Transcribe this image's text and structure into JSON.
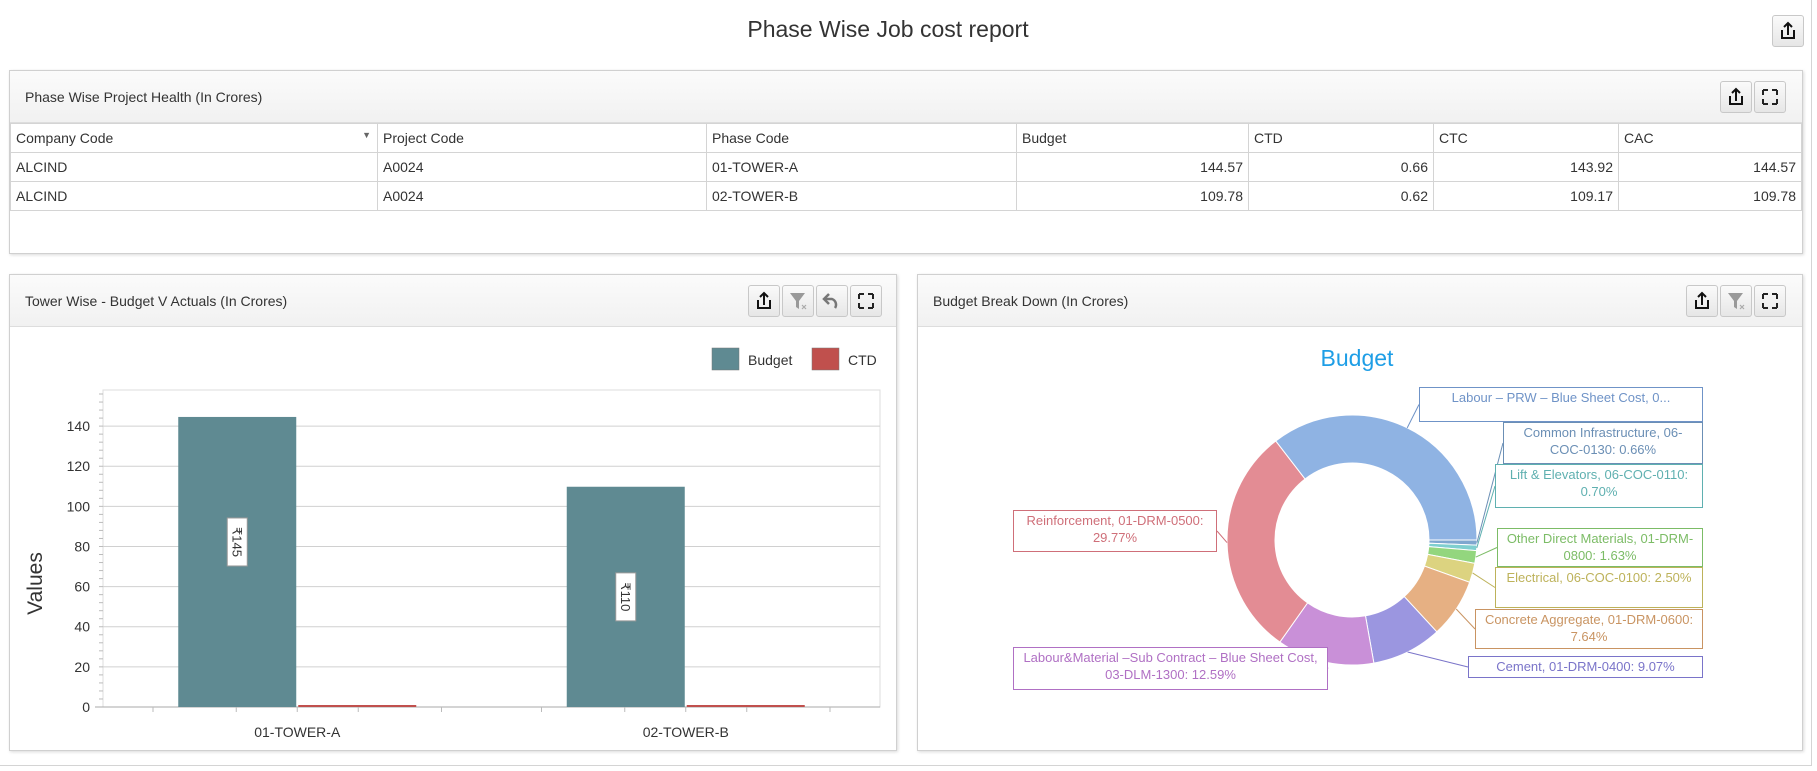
{
  "page": {
    "title": "Phase Wise Job cost report"
  },
  "health_panel": {
    "title": "Phase Wise Project Health (In Crores)",
    "columns": [
      "Company Code",
      "Project Code",
      "Phase Code",
      "Budget",
      "CTD",
      "CTC",
      "CAC"
    ],
    "rows": [
      [
        "ALCIND",
        "A0024",
        "01-TOWER-A",
        "144.57",
        "0.66",
        "143.92",
        "144.57"
      ],
      [
        "ALCIND",
        "A0024",
        "02-TOWER-B",
        "109.78",
        "0.62",
        "109.17",
        "109.78"
      ]
    ]
  },
  "bar_panel": {
    "title": "Tower Wise - Budget V Actuals (In Crores)"
  },
  "pie_panel": {
    "title": "Budget Break Down (In Crores)"
  },
  "chart_data": [
    {
      "type": "bar",
      "title": "",
      "xlabel": "",
      "ylabel": "Values",
      "categories": [
        "01-TOWER-A",
        "02-TOWER-B"
      ],
      "series": [
        {
          "name": "Budget",
          "color": "#5f8a92",
          "values": [
            144.57,
            109.78
          ],
          "labels": [
            "₹145",
            "₹110"
          ]
        },
        {
          "name": "CTD",
          "color": "#c0504d",
          "values": [
            0.66,
            0.62
          ]
        }
      ],
      "yticks": [
        0,
        20,
        40,
        60,
        80,
        100,
        120,
        140
      ],
      "ylim": [
        0,
        158
      ],
      "legend": "top-right",
      "grid": true
    },
    {
      "type": "pie",
      "title": "Budget",
      "slices": [
        {
          "label": "Common Infrastructure, 06-COC-0130: 0.66%",
          "value": 0.66,
          "color": "#7fa7cf",
          "text": "#6b8fb5"
        },
        {
          "label": "Lift & Elevators, 06-COC-0110: 0.70%",
          "value": 0.7,
          "color": "#7fcfcf",
          "text": "#5fb0b0"
        },
        {
          "label": "Other Direct Materials, 01-DRM-0800: 1.63%",
          "value": 1.63,
          "color": "#93d67e",
          "text": "#7cbc66"
        },
        {
          "label": "Electrical, 06-COC-0100: 2.50%",
          "value": 2.5,
          "color": "#dcd380",
          "text": "#bdb25a"
        },
        {
          "label": "Concrete Aggregate, 01-DRM-0600: 7.64%",
          "value": 7.64,
          "color": "#e6b083",
          "text": "#c99462"
        },
        {
          "label": "Cement, 01-DRM-0400: 9.07%",
          "value": 9.07,
          "color": "#9b96e0",
          "text": "#7a74c9"
        },
        {
          "label": "Labour&Material –Sub Contract – Blue Sheet Cost, 03-DLM-1300: 12.59%",
          "value": 12.59,
          "color": "#c990d8",
          "text": "#b070c4"
        },
        {
          "label": "Reinforcement, 01-DRM-0500: 29.77%",
          "value": 29.77,
          "color": "#e38c94",
          "text": "#cf6f79"
        },
        {
          "label": "Labour – PRW – Blue Sheet Cost, 0...",
          "value": 35.44,
          "color": "#8fb3e3",
          "text": "#6f93c7"
        }
      ]
    }
  ]
}
